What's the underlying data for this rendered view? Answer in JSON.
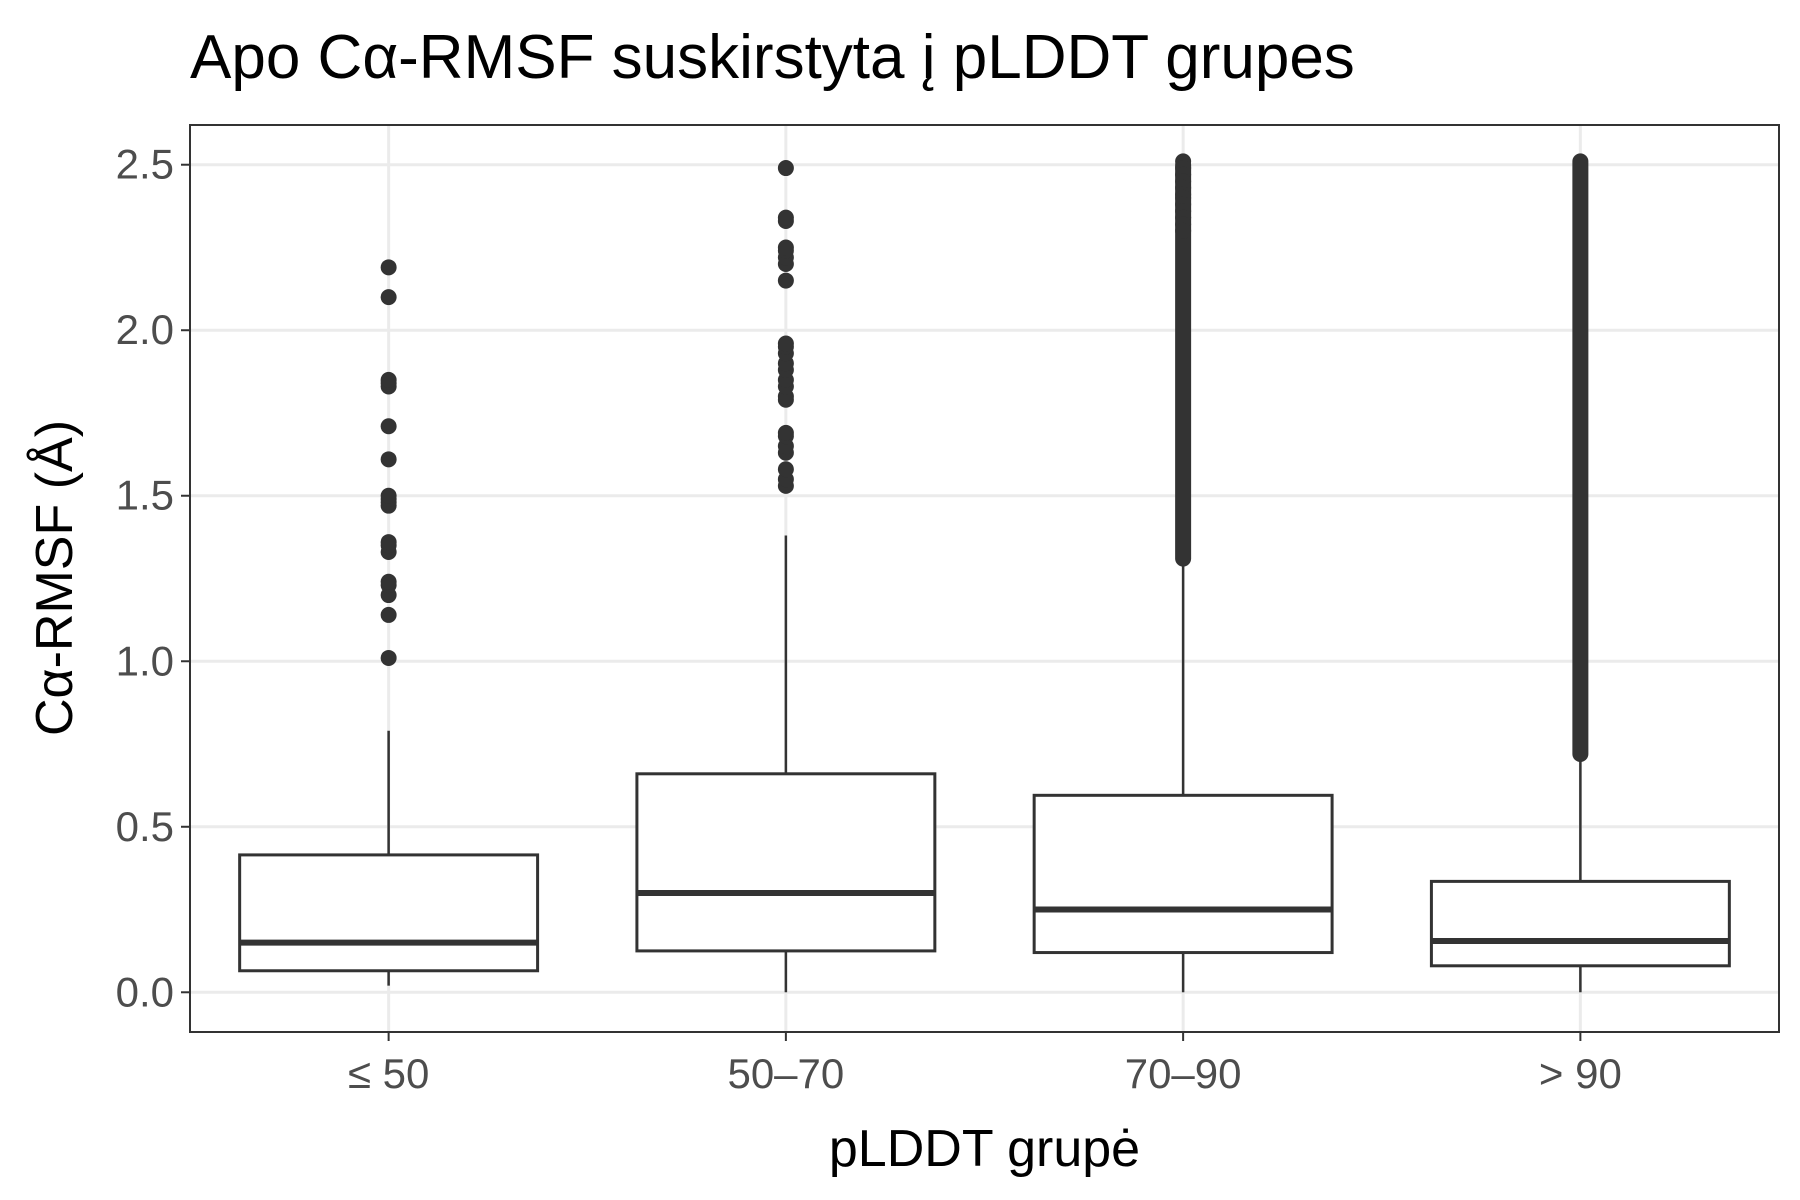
{
  "chart_data": {
    "type": "boxplot",
    "title": "Apo Cα-RMSF suskirstyta į pLDDT grupes",
    "xlabel": "pLDDT grupė",
    "ylabel": "Cα-RMSF (Å)",
    "ylim": [
      -0.12,
      2.62
    ],
    "y_ticks": [
      "0.0",
      "0.5",
      "1.0",
      "1.5",
      "2.0",
      "2.5"
    ],
    "y_tick_values": [
      0.0,
      0.5,
      1.0,
      1.5,
      2.0,
      2.5
    ],
    "grid": true,
    "legend": "none",
    "colors": {
      "box_stroke": "#333333",
      "outlier": "#333333",
      "grid": "#ebebeb",
      "panel_border": "#333333",
      "tick_label": "#4d4d4d"
    },
    "categories": [
      "≤ 50",
      "50–70",
      "70–90",
      "> 90"
    ],
    "boxes": [
      {
        "category": "≤ 50",
        "whisker_low": 0.02,
        "q1": 0.065,
        "median": 0.15,
        "q3": 0.415,
        "whisker_high": 0.79,
        "outliers": [
          1.01,
          1.14,
          1.2,
          1.23,
          1.24,
          1.33,
          1.35,
          1.36,
          1.47,
          1.48,
          1.49,
          1.5,
          1.61,
          1.71,
          1.83,
          1.84,
          1.85,
          2.1,
          2.19
        ]
      },
      {
        "category": "50–70",
        "whisker_low": 0.0,
        "q1": 0.125,
        "median": 0.3,
        "q3": 0.66,
        "whisker_high": 1.38,
        "outliers": [
          1.53,
          1.55,
          1.58,
          1.63,
          1.65,
          1.68,
          1.69,
          1.79,
          1.8,
          1.83,
          1.85,
          1.88,
          1.9,
          1.93,
          1.95,
          1.96,
          2.15,
          2.2,
          2.22,
          2.24,
          2.25,
          2.33,
          2.34,
          2.49
        ]
      },
      {
        "category": "70–90",
        "whisker_low": 0.0,
        "q1": 0.12,
        "median": 0.25,
        "q3": 0.595,
        "whisker_high": 1.3,
        "outlier_range": [
          1.31,
          2.5
        ],
        "outliers": [
          2.51,
          2.49,
          2.47,
          2.45,
          2.43,
          2.41,
          2.4,
          2.38,
          2.36,
          2.34,
          2.32,
          2.3
        ]
      },
      {
        "category": "> 90",
        "whisker_low": 0.0,
        "q1": 0.08,
        "median": 0.155,
        "q3": 0.335,
        "whisker_high": 0.71,
        "outlier_range": [
          0.72,
          2.51
        ],
        "outliers": []
      }
    ]
  }
}
